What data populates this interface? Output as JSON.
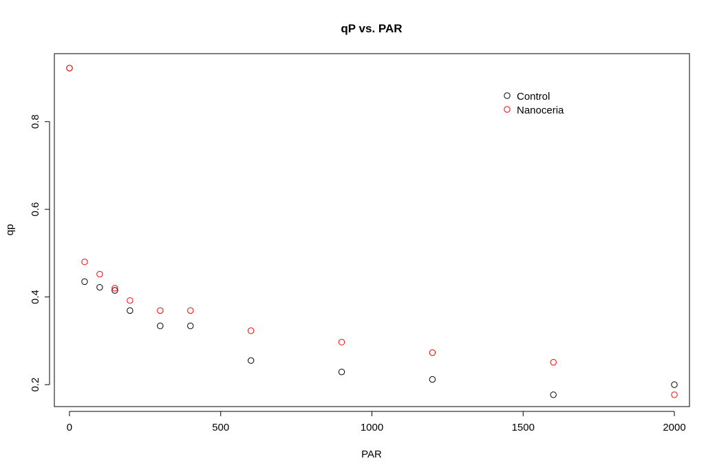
{
  "chart_data": {
    "type": "scatter",
    "title": "qP vs. PAR",
    "xlabel": "PAR",
    "ylabel": "qp",
    "xlim": [
      -50,
      2050
    ],
    "ylim": [
      0.15,
      0.955
    ],
    "x_ticks": [
      0,
      500,
      1000,
      1500,
      2000
    ],
    "y_ticks": [
      0.2,
      0.4,
      0.6,
      0.8
    ],
    "x_tick_labels": [
      "0",
      "500",
      "1000",
      "1500",
      "2000"
    ],
    "y_tick_labels": [
      "0.2",
      "0.4",
      "0.6",
      "0.8"
    ],
    "grid": false,
    "legend_position": "top-right",
    "series": [
      {
        "name": "Control",
        "color": "#000000",
        "marker": "open-circle",
        "points": [
          {
            "x": 0,
            "y": 0.922
          },
          {
            "x": 50,
            "y": 0.435
          },
          {
            "x": 100,
            "y": 0.422
          },
          {
            "x": 150,
            "y": 0.415
          },
          {
            "x": 200,
            "y": 0.369
          },
          {
            "x": 300,
            "y": 0.334
          },
          {
            "x": 400,
            "y": 0.334
          },
          {
            "x": 600,
            "y": 0.255
          },
          {
            "x": 900,
            "y": 0.229
          },
          {
            "x": 1200,
            "y": 0.212
          },
          {
            "x": 1600,
            "y": 0.177
          },
          {
            "x": 2000,
            "y": 0.2
          }
        ]
      },
      {
        "name": "Nanoceria",
        "color": "#ff0000",
        "marker": "open-circle",
        "points": [
          {
            "x": 0,
            "y": 0.922
          },
          {
            "x": 50,
            "y": 0.48
          },
          {
            "x": 100,
            "y": 0.452
          },
          {
            "x": 150,
            "y": 0.42
          },
          {
            "x": 200,
            "y": 0.392
          },
          {
            "x": 300,
            "y": 0.369
          },
          {
            "x": 400,
            "y": 0.369
          },
          {
            "x": 600,
            "y": 0.323
          },
          {
            "x": 900,
            "y": 0.297
          },
          {
            "x": 1200,
            "y": 0.273
          },
          {
            "x": 1600,
            "y": 0.251
          },
          {
            "x": 2000,
            "y": 0.177
          }
        ]
      }
    ]
  }
}
